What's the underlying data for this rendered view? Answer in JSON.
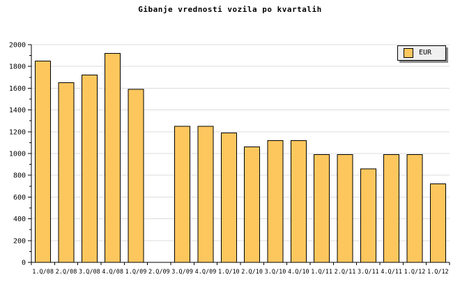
{
  "chart_data": {
    "type": "bar",
    "title": "Gibanje vrednosti vozila po kvartalih",
    "categories": [
      "1.Q/08",
      "2.Q/08",
      "3.Q/08",
      "4.Q/08",
      "1.Q/09",
      "2.Q/09",
      "3.Q/09",
      "4.Q/09",
      "1.Q/10",
      "2.Q/10",
      "3.Q/10",
      "4.Q/10",
      "1.Q/11",
      "2.Q/11",
      "3.Q/11",
      "4.Q/11",
      "1.Q/12",
      "1.Q/12"
    ],
    "values": [
      1850,
      1650,
      1720,
      1920,
      1590,
      null,
      1250,
      1250,
      1190,
      1060,
      1120,
      1120,
      990,
      990,
      860,
      990,
      990,
      720
    ],
    "xlabel": "",
    "ylabel": "",
    "ylim": [
      0,
      2000
    ],
    "ytick_major": 200,
    "ytick_minor": 100,
    "ytick_labels": [
      "0",
      "200",
      "400",
      "600",
      "800",
      "1000",
      "1200",
      "1400",
      "1600",
      "1800",
      "2000"
    ],
    "grid": "horizontal-major",
    "legend_position": "top-right",
    "legend": [
      {
        "label": "EUR",
        "color": "#FDC75E"
      }
    ],
    "colors": {
      "bar_fill": "#FDC75E",
      "bar_border": "#000000",
      "grid": "#DCDCDC",
      "axis": "#000000",
      "text": "#000000",
      "legend_bg": "#F0F0F0",
      "legend_shadow": "#8C8C8C",
      "background": "#FFFFFF"
    }
  }
}
